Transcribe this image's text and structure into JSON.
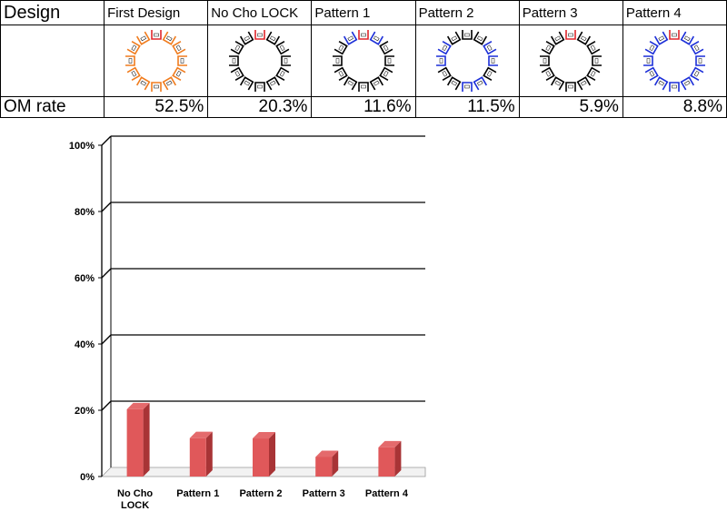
{
  "table": {
    "header_label": "Design",
    "rate_label": "OM rate",
    "columns": [
      {
        "name": "First Design",
        "rate": "52.5%",
        "colors": [
          "orange",
          "orange",
          "orange",
          "orange",
          "red",
          "orange",
          "orange",
          "orange",
          "orange",
          "orange",
          "orange",
          "orange"
        ]
      },
      {
        "name": "No Cho LOCK",
        "rate": "20.3%",
        "colors": [
          "black",
          "black",
          "black",
          "black",
          "red",
          "black",
          "black",
          "black",
          "black",
          "black",
          "black",
          "black"
        ]
      },
      {
        "name": "Pattern 1",
        "rate": "11.6%",
        "colors": [
          "black",
          "black",
          "black",
          "blue",
          "red",
          "blue",
          "black",
          "black",
          "black",
          "black",
          "black",
          "black"
        ]
      },
      {
        "name": "Pattern 2",
        "rate": "11.5%",
        "colors": [
          "black",
          "blue",
          "blue",
          "black",
          "black",
          "black",
          "blue",
          "blue",
          "black",
          "blue",
          "blue",
          "black"
        ]
      },
      {
        "name": "Pattern 3",
        "rate": "5.9%",
        "colors": [
          "black",
          "black",
          "black",
          "black",
          "red",
          "black",
          "black",
          "black",
          "black",
          "black",
          "black",
          "black"
        ]
      },
      {
        "name": "Pattern 4",
        "rate": "8.8%",
        "colors": [
          "blue",
          "blue",
          "blue",
          "blue",
          "red",
          "blue",
          "blue",
          "blue",
          "blue",
          "blue",
          "blue",
          "blue"
        ]
      }
    ],
    "palette": {
      "orange": "#f07c1e",
      "black": "#000000",
      "red": "#e0262b",
      "blue": "#1c2fd8"
    }
  },
  "chart_data": {
    "type": "bar",
    "categories": [
      "No Cho LOCK",
      "Pattern 1",
      "Pattern 2",
      "Pattern 3",
      "Pattern 4"
    ],
    "category_lines": [
      [
        "No Cho",
        "LOCK"
      ],
      [
        "Pattern 1"
      ],
      [
        "Pattern 2"
      ],
      [
        "Pattern 3"
      ],
      [
        "Pattern 4"
      ]
    ],
    "values": [
      20.3,
      11.6,
      11.5,
      5.9,
      8.8
    ],
    "ylim": [
      0,
      100
    ],
    "yticks": [
      0,
      20,
      40,
      60,
      80,
      100
    ],
    "ytick_labels": [
      "0%",
      "20%",
      "40%",
      "60%",
      "80%",
      "100%"
    ],
    "grid": true,
    "bar_color": "#e0585a"
  }
}
